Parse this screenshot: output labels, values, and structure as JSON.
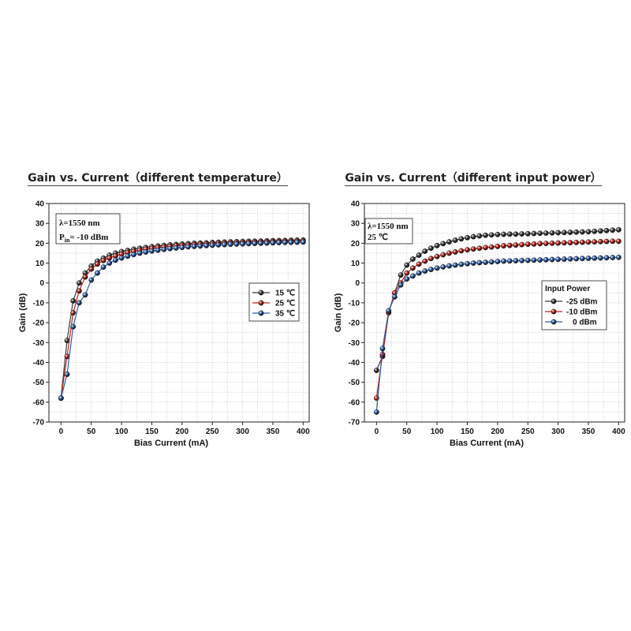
{
  "chart_data": [
    {
      "type": "line",
      "title": "Gain vs. Current（different temperature）",
      "xlabel": "Bias Current (mA)",
      "ylabel": "Gain (dB)",
      "xlim": [
        -20,
        410
      ],
      "ylim": [
        -70,
        40
      ],
      "xticks": [
        "0",
        "50",
        "100",
        "150",
        "200",
        "250",
        "300",
        "350",
        "400"
      ],
      "yticks": [
        "40",
        "30",
        "20",
        "10",
        "0",
        "-10",
        "-20",
        "-30",
        "-40",
        "-50",
        "-60",
        "-70"
      ],
      "grid": true,
      "annotation": [
        "λ=1550 nm",
        "P",
        "in",
        "= -10 dBm"
      ],
      "legend": {
        "title": "",
        "position": "right"
      },
      "series": [
        {
          "name": "15 ℃",
          "color": "#3a3a3a",
          "x": [
            0,
            10,
            20,
            30,
            40,
            50,
            60,
            70,
            80,
            90,
            100,
            110,
            120,
            130,
            140,
            150,
            160,
            170,
            180,
            190,
            200,
            210,
            220,
            230,
            240,
            250,
            260,
            270,
            280,
            290,
            300,
            310,
            320,
            330,
            340,
            350,
            360,
            370,
            380,
            390,
            400
          ],
          "values": [
            -58,
            -29,
            -9,
            0,
            5,
            8.5,
            11,
            12.5,
            14,
            15,
            15.8,
            16.4,
            17,
            17.5,
            17.9,
            18.3,
            18.6,
            18.9,
            19.2,
            19.4,
            19.6,
            19.8,
            20,
            20.1,
            20.2,
            20.4,
            20.5,
            20.6,
            20.7,
            20.8,
            20.9,
            21,
            21.05,
            21.1,
            21.2,
            21.3,
            21.35,
            21.4,
            21.5,
            21.55,
            21.6
          ]
        },
        {
          "name": "25 ℃",
          "color": "#c0201a",
          "x": [
            0,
            10,
            20,
            30,
            40,
            50,
            60,
            70,
            80,
            90,
            100,
            110,
            120,
            130,
            140,
            150,
            160,
            170,
            180,
            190,
            200,
            210,
            220,
            230,
            240,
            250,
            260,
            270,
            280,
            290,
            300,
            310,
            320,
            330,
            340,
            350,
            360,
            370,
            380,
            390,
            400
          ],
          "values": [
            -58,
            -37,
            -15,
            -4,
            3,
            7,
            9.5,
            11.3,
            12.6,
            13.6,
            14.5,
            15.3,
            15.9,
            16.5,
            17,
            17.4,
            17.8,
            18.1,
            18.4,
            18.7,
            18.9,
            19.1,
            19.3,
            19.5,
            19.6,
            19.8,
            19.9,
            20,
            20.1,
            20.2,
            20.3,
            20.4,
            20.5,
            20.6,
            20.7,
            20.75,
            20.8,
            20.9,
            20.95,
            21,
            21.1
          ]
        },
        {
          "name": "35 ℃",
          "color": "#2b5ca8",
          "x": [
            0,
            10,
            20,
            30,
            40,
            50,
            60,
            70,
            80,
            90,
            100,
            110,
            120,
            130,
            140,
            150,
            160,
            170,
            180,
            190,
            200,
            210,
            220,
            230,
            240,
            250,
            260,
            270,
            280,
            290,
            300,
            310,
            320,
            330,
            340,
            350,
            360,
            370,
            380,
            390,
            400
          ],
          "values": [
            -58,
            -46,
            -22,
            -10,
            -6,
            1.5,
            5,
            8,
            10,
            11.5,
            12.6,
            13.5,
            14.3,
            15,
            15.6,
            16.1,
            16.5,
            16.9,
            17.3,
            17.6,
            17.9,
            18.2,
            18.4,
            18.6,
            18.8,
            19,
            19.2,
            19.3,
            19.5,
            19.6,
            19.7,
            19.8,
            19.9,
            20,
            20.1,
            20.2,
            20.3,
            20.4,
            20.45,
            20.5,
            20.6
          ]
        }
      ]
    },
    {
      "type": "line",
      "title": "Gain vs. Current（different input power）",
      "xlabel": "Bias Current (mA)",
      "ylabel": "Gain (dB)",
      "xlim": [
        -20,
        410
      ],
      "ylim": [
        -70,
        40
      ],
      "xticks": [
        "0",
        "50",
        "100",
        "150",
        "200",
        "250",
        "300",
        "350",
        "400"
      ],
      "yticks": [
        "40",
        "30",
        "20",
        "10",
        "0",
        "-10",
        "-20",
        "-30",
        "-40",
        "-50",
        "-60",
        "-70"
      ],
      "grid": true,
      "annotation": [
        "λ=1550 nm",
        "25 ℃"
      ],
      "legend": {
        "title": "Input Power",
        "position": "right"
      },
      "series": [
        {
          "name": "-25 dBm",
          "color": "#3a3a3a",
          "x": [
            0,
            10,
            20,
            30,
            40,
            50,
            60,
            70,
            80,
            90,
            100,
            110,
            120,
            130,
            140,
            150,
            160,
            170,
            180,
            190,
            200,
            210,
            220,
            230,
            240,
            250,
            260,
            270,
            280,
            290,
            300,
            310,
            320,
            330,
            340,
            350,
            360,
            370,
            380,
            390,
            400
          ],
          "values": [
            -44,
            -37,
            -15,
            -5,
            4,
            9,
            12,
            14,
            16,
            17.5,
            18.8,
            19.8,
            20.7,
            21.5,
            22.2,
            22.8,
            23.3,
            23.7,
            24,
            24.2,
            24.4,
            24.5,
            24.6,
            24.6,
            24.7,
            24.8,
            24.9,
            25,
            25.1,
            25.2,
            25.3,
            25.4,
            25.5,
            25.6,
            25.7,
            25.8,
            26,
            26.2,
            26.4,
            26.6,
            26.8
          ]
        },
        {
          "name": "-10 dBm",
          "color": "#c0201a",
          "x": [
            0,
            10,
            20,
            30,
            40,
            50,
            60,
            70,
            80,
            90,
            100,
            110,
            120,
            130,
            140,
            150,
            160,
            170,
            180,
            190,
            200,
            210,
            220,
            230,
            240,
            250,
            260,
            270,
            280,
            290,
            300,
            310,
            320,
            330,
            340,
            350,
            360,
            370,
            380,
            390,
            400
          ],
          "values": [
            -58,
            -36,
            -15,
            -5,
            0,
            5,
            7.5,
            9.5,
            11,
            12.3,
            13.3,
            14.2,
            15,
            15.6,
            16.2,
            16.7,
            17.1,
            17.5,
            17.8,
            18.1,
            18.4,
            18.7,
            18.9,
            19.1,
            19.3,
            19.5,
            19.6,
            19.8,
            19.9,
            20,
            20.1,
            20.2,
            20.3,
            20.4,
            20.5,
            20.6,
            20.7,
            20.8,
            20.9,
            21,
            21
          ]
        },
        {
          "name": "0 dBm",
          "color": "#2b5ca8",
          "x": [
            0,
            10,
            20,
            30,
            40,
            50,
            60,
            70,
            80,
            90,
            100,
            110,
            120,
            130,
            140,
            150,
            160,
            170,
            180,
            190,
            200,
            210,
            220,
            230,
            240,
            250,
            260,
            270,
            280,
            290,
            300,
            310,
            320,
            330,
            340,
            350,
            360,
            370,
            380,
            390,
            400
          ],
          "values": [
            -65,
            -33,
            -14,
            -7,
            -1,
            2,
            3.5,
            5,
            6,
            6.8,
            7.5,
            8.1,
            8.6,
            9,
            9.4,
            9.7,
            10,
            10.2,
            10.4,
            10.6,
            10.8,
            11,
            11.1,
            11.2,
            11.3,
            11.4,
            11.5,
            11.6,
            11.7,
            11.8,
            11.9,
            12,
            12.1,
            12.2,
            12.3,
            12.4,
            12.5,
            12.6,
            12.7,
            12.8,
            12.9
          ]
        }
      ]
    }
  ]
}
